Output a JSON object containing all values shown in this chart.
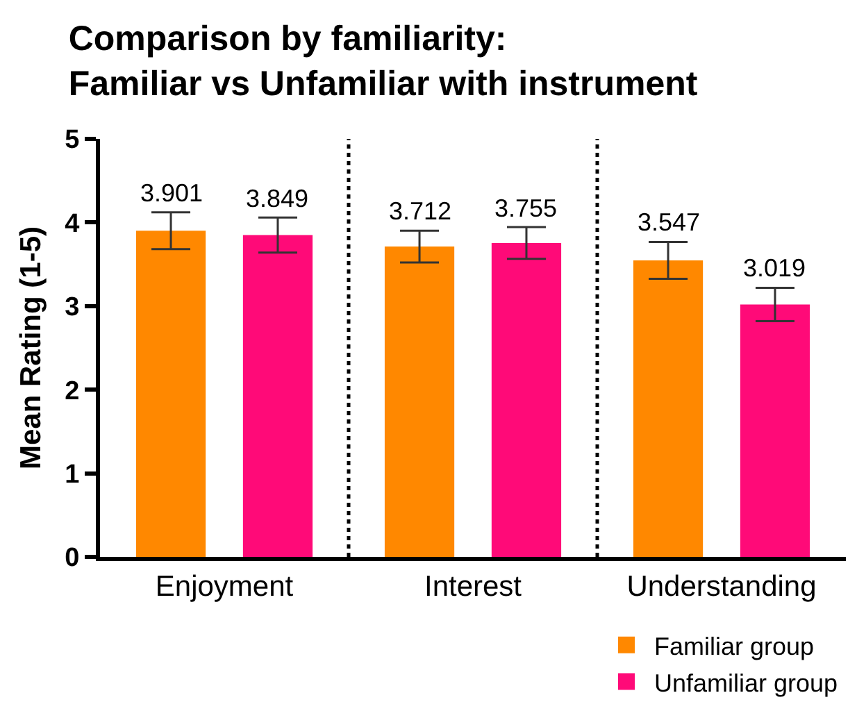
{
  "chart_data": {
    "type": "bar",
    "title": "Comparison by familiarity:\nFamiliar vs Unfamiliar with instrument",
    "ylabel": "Mean Rating (1-5)",
    "categories": [
      "Enjoyment",
      "Interest",
      "Understanding"
    ],
    "series": [
      {
        "name": "Familiar group",
        "color": "#ff8800",
        "values": [
          3.901,
          3.712,
          3.547
        ],
        "errors": [
          0.22,
          0.19,
          0.22
        ]
      },
      {
        "name": "Unfamiliar group",
        "color": "#ff0a78",
        "values": [
          3.849,
          3.755,
          3.019
        ],
        "errors": [
          0.21,
          0.19,
          0.2
        ]
      }
    ],
    "ylim": [
      0,
      5
    ],
    "yticks": [
      0,
      1,
      2,
      3,
      4,
      5
    ],
    "grid": false,
    "legend": "bottom right",
    "data_labels": true
  }
}
